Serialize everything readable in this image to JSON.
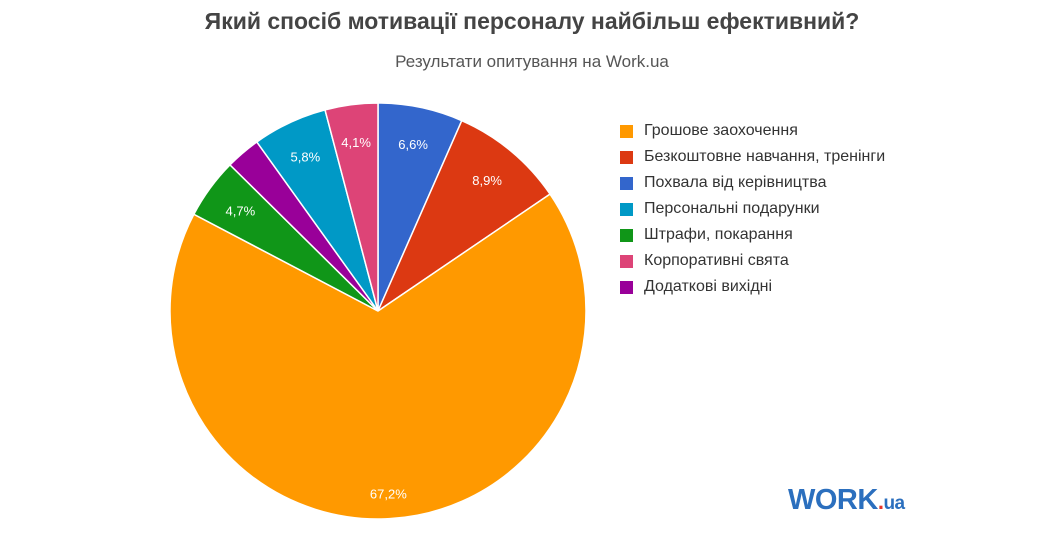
{
  "header": {
    "title": "Який спосіб мотивації персоналу найбільш ефективний?",
    "subtitle": "Результати опитування на Work.ua"
  },
  "logo": {
    "main": "WORK",
    "dot": ".",
    "tld": "ua"
  },
  "chart_data": {
    "type": "pie",
    "title": "Який спосіб мотивації персоналу найбільш ефективний?",
    "subtitle": "Результати опитування на Work.ua",
    "legend_position": "right",
    "slices": [
      {
        "label": "Грошове заохочення",
        "value": 67.2,
        "display": "67,2%",
        "color": "#ff9900"
      },
      {
        "label": "Безкоштовне навчання, тренінги",
        "value": 8.9,
        "display": "8,9%",
        "color": "#dc3912"
      },
      {
        "label": "Похвала від керівництва",
        "value": 6.6,
        "display": "6,6%",
        "color": "#3366cc"
      },
      {
        "label": "Персональні подарунки",
        "value": 5.8,
        "display": "5,8%",
        "color": "#0099c6"
      },
      {
        "label": "Штрафи, покарання",
        "value": 4.7,
        "display": "4,7%",
        "color": "#109618"
      },
      {
        "label": "Корпоративні свята",
        "value": 4.1,
        "display": "4,1%",
        "color": "#dd4477"
      },
      {
        "label": "Додаткові вихідні",
        "value": 2.7,
        "display": "",
        "color": "#990099"
      }
    ],
    "draw_order": [
      2,
      1,
      0,
      4,
      6,
      3,
      5
    ]
  }
}
